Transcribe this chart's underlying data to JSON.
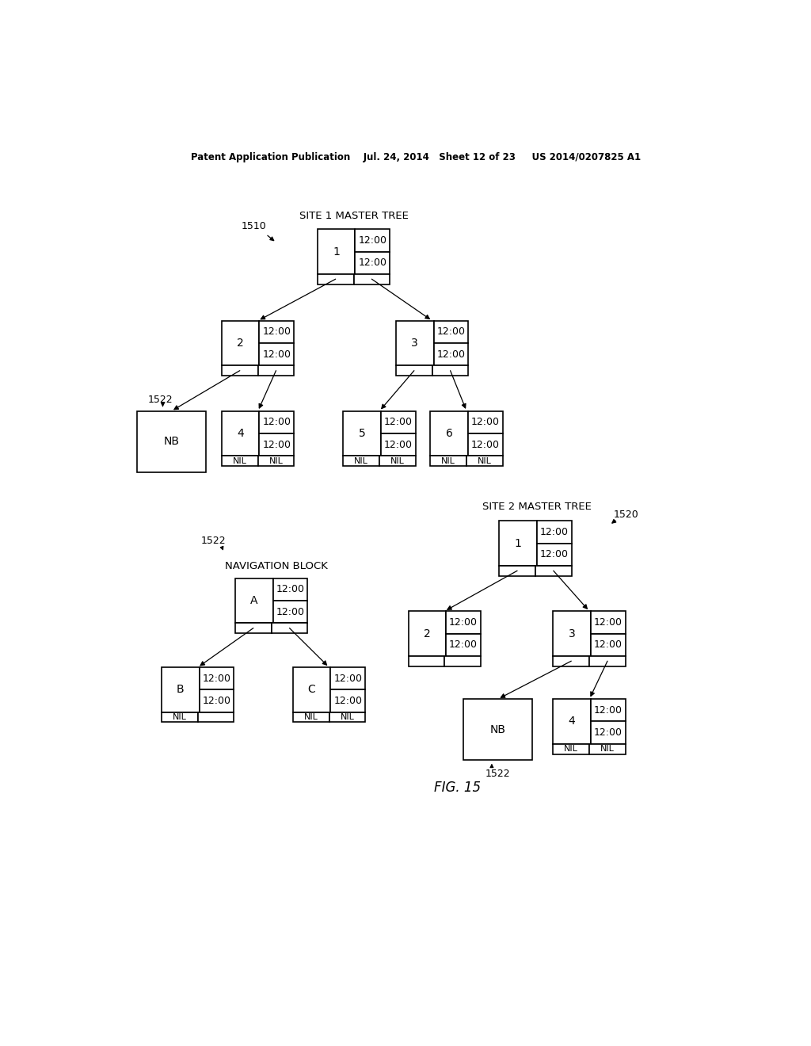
{
  "bg_color": "#ffffff",
  "header": "Patent Application Publication    Jul. 24, 2014   Sheet 12 of 23     US 2014/0207825 A1",
  "fig_label": "FIG. 15",
  "site1_label": "SITE 1 MASTER TREE",
  "site2_label": "SITE 2 MASTER TREE",
  "nav_block_label": "NAVIGATION BLOCK",
  "time": "12:00",
  "nil": "NIL",
  "label_1510": "1510",
  "label_1520": "1520",
  "label_1522": "1522"
}
